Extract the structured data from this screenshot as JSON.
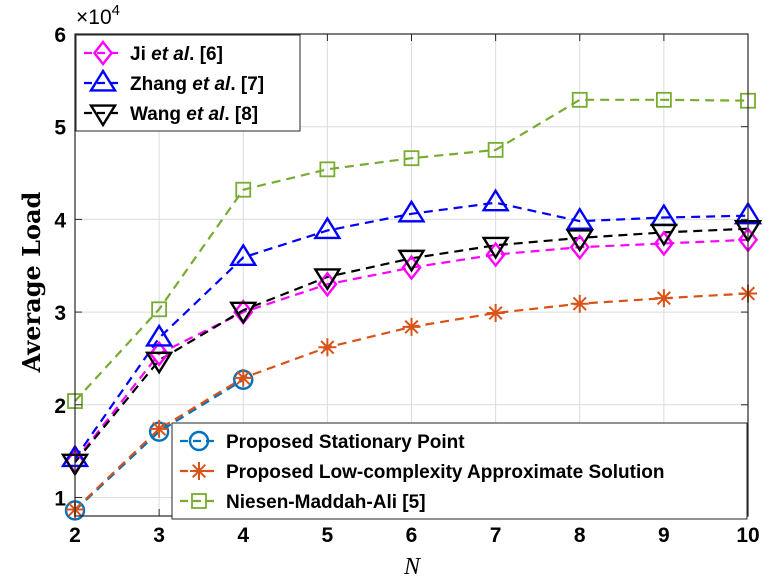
{
  "chart_data": {
    "type": "line",
    "title": "",
    "xlabel": "N",
    "ylabel": "Average Load",
    "exponent_base": "×10",
    "exponent_power": "4",
    "x": [
      2,
      3,
      4,
      5,
      6,
      7,
      8,
      9,
      10
    ],
    "xlim": [
      2,
      10
    ],
    "ylim": [
      0.8,
      6
    ],
    "xticks": [
      "2",
      "3",
      "4",
      "5",
      "6",
      "7",
      "8",
      "9",
      "10"
    ],
    "yticks": [
      {
        "value": 1,
        "label": "1"
      },
      {
        "value": 2,
        "label": "2"
      },
      {
        "value": 3,
        "label": "3"
      },
      {
        "value": 4,
        "label": "4"
      },
      {
        "value": 5,
        "label": "5"
      },
      {
        "value": 6,
        "label": "6"
      }
    ],
    "grid": true,
    "series": [
      {
        "name_parts": [
          "Ji ",
          "et al",
          ". [6]"
        ],
        "color": "#ff00ff",
        "marker": "diamond",
        "line": "dashed",
        "legend": "top-left",
        "values": [
          1.39,
          2.55,
          3.0,
          3.3,
          3.48,
          3.62,
          3.7,
          3.74,
          3.78
        ]
      },
      {
        "name_parts": [
          "Zhang ",
          "et al",
          ". [7]"
        ],
        "color": "#0000ff",
        "marker": "triangle-up",
        "line": "dashed",
        "legend": "top-left",
        "values": [
          1.42,
          2.72,
          3.59,
          3.88,
          4.06,
          4.18,
          3.98,
          4.02,
          4.04
        ]
      },
      {
        "name_parts": [
          "Wang ",
          "et al",
          ". [8]"
        ],
        "color": "#000000",
        "marker": "triangle-down",
        "line": "dashed",
        "legend": "top-left",
        "values": [
          1.38,
          2.48,
          3.02,
          3.38,
          3.58,
          3.72,
          3.8,
          3.86,
          3.9
        ]
      },
      {
        "name_parts": [
          "Proposed Stationary Point"
        ],
        "color": "#0072bd",
        "marker": "circle",
        "line": "dashed",
        "legend": "bottom-right",
        "values": [
          0.86,
          1.71,
          2.27,
          null,
          null,
          null,
          null,
          null,
          null
        ]
      },
      {
        "name_parts": [
          "Proposed Low-complexity Approximate Solution"
        ],
        "color": "#d95319",
        "marker": "asterisk",
        "line": "dashed",
        "legend": "bottom-right",
        "values": [
          0.87,
          1.74,
          2.29,
          2.62,
          2.84,
          2.99,
          3.09,
          3.15,
          3.2
        ]
      },
      {
        "name_parts": [
          "Niesen-Maddah-Ali [5]"
        ],
        "color": "#77ac30",
        "marker": "square",
        "line": "dashed",
        "legend": "bottom-right",
        "values": [
          2.04,
          3.03,
          4.32,
          4.54,
          4.66,
          4.75,
          5.29,
          5.29,
          5.28
        ]
      }
    ]
  }
}
